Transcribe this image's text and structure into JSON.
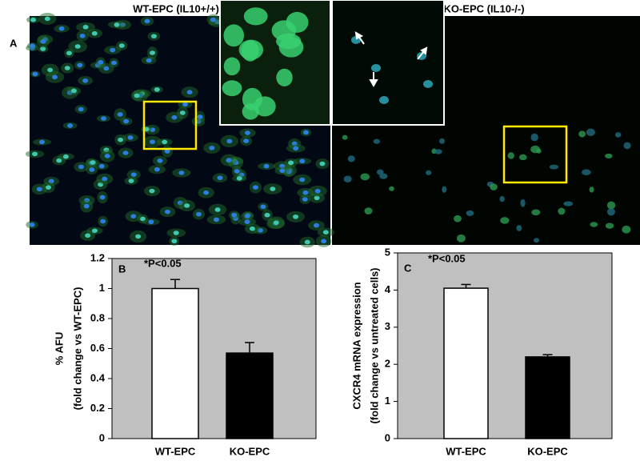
{
  "panel_a": {
    "label": "A",
    "left_title": "WT-EPC (IL10+/+)",
    "right_title": "KO-EPC (IL10-/-)"
  },
  "chart_data": [
    {
      "type": "bar",
      "panel": "B",
      "ylabel": "% AFU",
      "ylabel2": "(fold change vs WT-EPC)",
      "annotation": "*P<0.05",
      "categories": [
        "WT-EPC",
        "KO-EPC"
      ],
      "values": [
        1.0,
        0.57
      ],
      "errors": [
        0.06,
        0.07
      ],
      "colors": [
        "#ffffff",
        "#000000"
      ],
      "background": "#c0c0c0",
      "ylim": [
        0,
        1.2
      ],
      "yticks": [
        0,
        0.2,
        0.4,
        0.6,
        0.8,
        1,
        1.2
      ]
    },
    {
      "type": "bar",
      "panel": "C",
      "ylabel": "CXCR4 mRNA expression",
      "ylabel2": "(fold change vs untreated cells)",
      "annotation": "*P<0.05",
      "categories": [
        "WT-EPC",
        "KO-EPC"
      ],
      "values": [
        4.05,
        2.2
      ],
      "errors": [
        0.1,
        0.06
      ],
      "colors": [
        "#ffffff",
        "#000000"
      ],
      "background": "#c0c0c0",
      "ylim": [
        0,
        5
      ],
      "yticks": [
        0,
        1,
        2,
        3,
        4,
        5
      ]
    }
  ]
}
